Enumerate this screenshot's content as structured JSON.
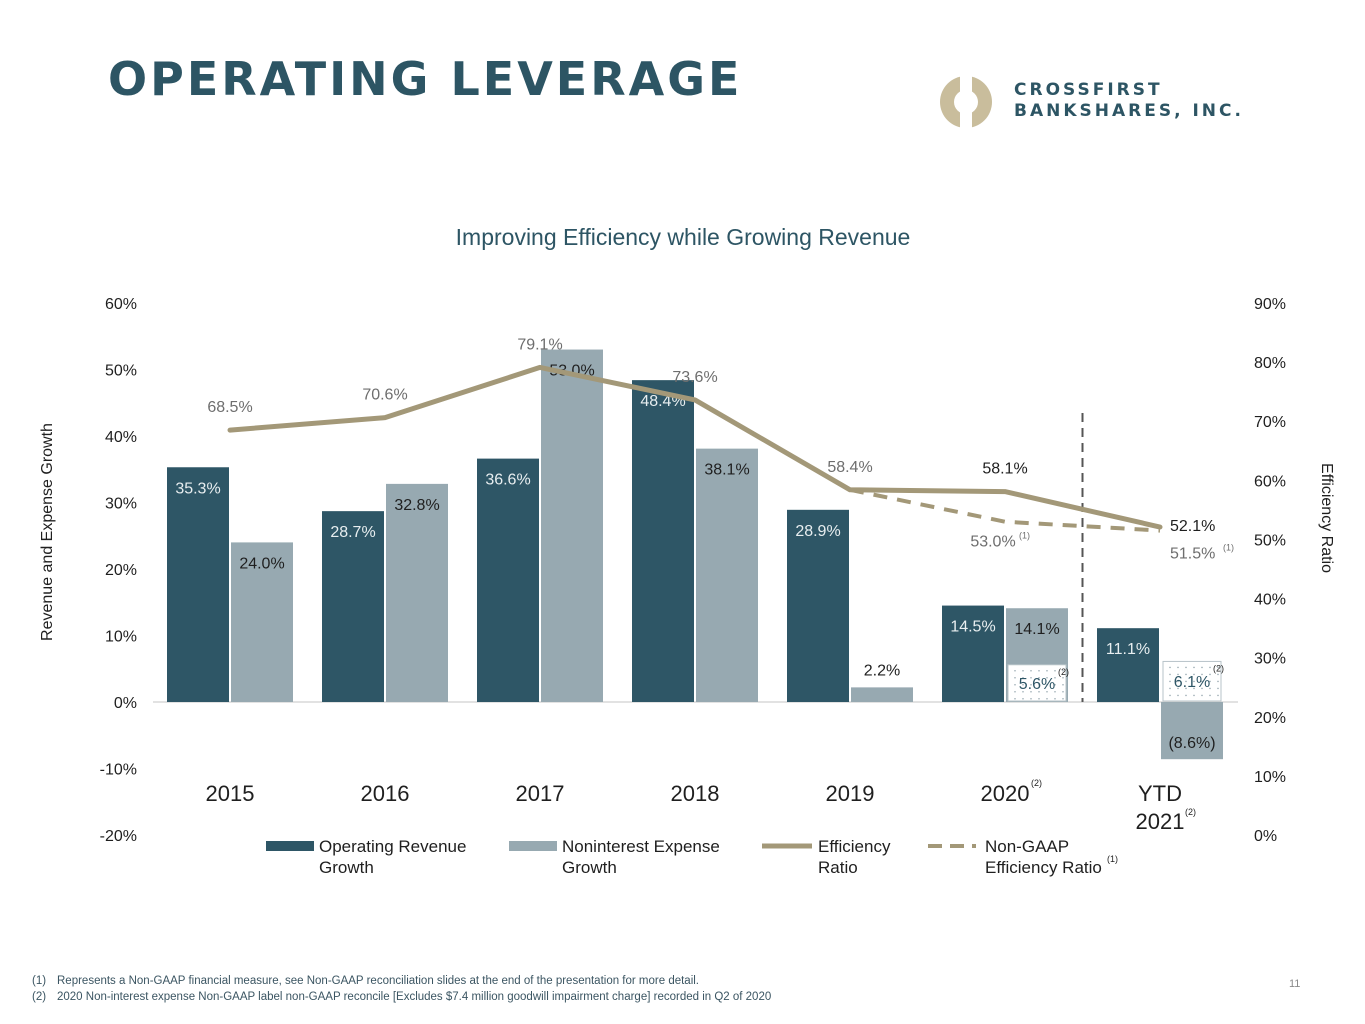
{
  "slide": {
    "title": "OPERATING LEVERAGE",
    "logo": {
      "line1": "CROSSFIRST",
      "line2": "BANKSHARES, INC."
    },
    "page_number": "11",
    "footnotes": [
      {
        "num": "(1)",
        "text": "Represents a Non-GAAP financial measure, see Non-GAAP reconciliation slides at the end of the presentation for more detail."
      },
      {
        "num": "(2)",
        "text": "2020 Non-interest expense Non-GAAP label non-GAAP reconcile [Excludes $7.4 million goodwill impairment charge] recorded in Q2 of 2020"
      }
    ]
  },
  "colors": {
    "title": "#2d5564",
    "revenue_bar": "#2e5666",
    "expense_bar": "#97a9b1",
    "efficiency_line": "#a39878",
    "axis_text": "#1f1f1f",
    "muted_label": "#6e6e6e"
  },
  "chart_data": {
    "type": "bar",
    "title": "Improving Efficiency while Growing Revenue",
    "ylabel": "Revenue and Expense Growth",
    "y2label": "Efficiency Ratio",
    "ylim": [
      -20,
      60
    ],
    "y2lim": [
      0,
      90
    ],
    "y_ticks": [
      "60%",
      "50%",
      "40%",
      "30%",
      "20%",
      "10%",
      "0%",
      "-10%",
      "-20%"
    ],
    "y2_ticks": [
      "90%",
      "80%",
      "70%",
      "60%",
      "50%",
      "40%",
      "30%",
      "20%",
      "10%",
      "0%"
    ],
    "categories": [
      {
        "label": "2015",
        "note": ""
      },
      {
        "label": "2016",
        "note": ""
      },
      {
        "label": "2017",
        "note": ""
      },
      {
        "label": "2018",
        "note": ""
      },
      {
        "label": "2019",
        "note": ""
      },
      {
        "label": "2020",
        "note": "(2)"
      },
      {
        "label": "YTD",
        "label2": "2021",
        "note": "(2)"
      }
    ],
    "series": [
      {
        "name": "Operating Revenue Growth",
        "legend": [
          "Operating Revenue",
          "Growth"
        ],
        "kind": "bar",
        "values": [
          35.3,
          28.7,
          36.6,
          48.4,
          28.9,
          14.5,
          11.1
        ],
        "labels": [
          "35.3%",
          "28.7%",
          "36.6%",
          "48.4%",
          "28.9%",
          "14.5%",
          "11.1%"
        ]
      },
      {
        "name": "Noninterest Expense Growth",
        "legend": [
          "Noninterest Expense",
          "Growth"
        ],
        "kind": "bar",
        "values": [
          24.0,
          32.8,
          53.0,
          38.1,
          2.2,
          14.1,
          -8.6
        ],
        "labels": [
          "24.0%",
          "32.8%",
          "53.0%",
          "38.1%",
          "2.2%",
          "14.1%",
          "(8.6%)"
        ]
      },
      {
        "name": "Efficiency Ratio",
        "legend": [
          "Efficiency",
          "Ratio"
        ],
        "kind": "line",
        "axis": "right",
        "values": [
          68.5,
          70.6,
          79.1,
          73.6,
          58.4,
          58.1,
          52.1
        ],
        "labels": [
          "68.5%",
          "70.6%",
          "79.1%",
          "73.6%",
          "58.4%",
          "58.1%",
          "52.1%"
        ]
      },
      {
        "name": "Non-GAAP Efficiency Ratio",
        "legend": [
          "Non-GAAP",
          "Efficiency Ratio"
        ],
        "legend_note": "(1)",
        "kind": "dashed-line",
        "axis": "right",
        "start_index": 4,
        "values": [
          null,
          null,
          null,
          null,
          58.4,
          53.0,
          51.5
        ],
        "labels": [
          "",
          "",
          "",
          "",
          "",
          "53.0%",
          "51.5%"
        ],
        "label_note": "(1)"
      }
    ],
    "non_gaap_expense": [
      {
        "category": "2020",
        "value": 5.6,
        "label": "5.6%",
        "note": "(2)"
      },
      {
        "category": "YTD 2021",
        "value": 6.1,
        "label": "6.1%",
        "note": "(2)"
      }
    ]
  }
}
